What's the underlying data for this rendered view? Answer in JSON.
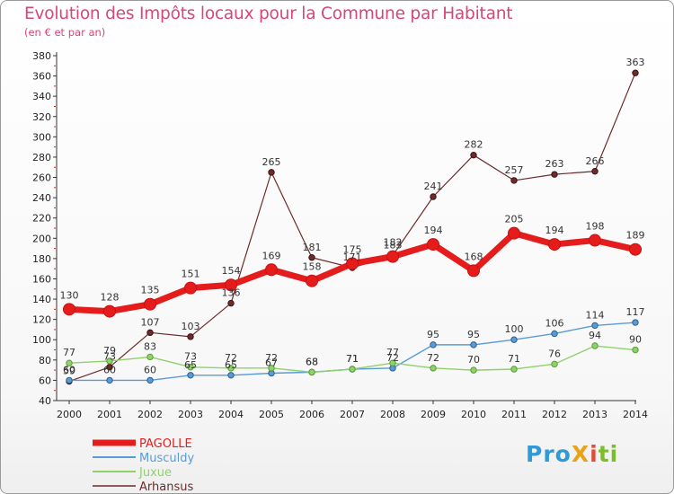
{
  "header": {
    "title": "Evolution des Impôts locaux pour la Commune par Habitant",
    "subtitle": "(en € et par an)"
  },
  "logo": {
    "text": "ProXiti",
    "parts": [
      "Pro",
      "X",
      "i",
      "ti"
    ],
    "colors": [
      "#2e9ad6",
      "#e8a21c",
      "#e24b3b",
      "#7cbd2e"
    ]
  },
  "chart_data": {
    "type": "line",
    "title": "Evolution des Impôts locaux pour la Commune par Habitant",
    "subtitle": "(en € et par an)",
    "x": [
      "2000",
      "2001",
      "2002",
      "2003",
      "2004",
      "2005",
      "2006",
      "2007",
      "2008",
      "2009",
      "2010",
      "2011",
      "2012",
      "2013",
      "2014"
    ],
    "ylim": [
      40,
      380
    ],
    "yticks": [
      40,
      60,
      80,
      100,
      120,
      140,
      160,
      180,
      200,
      220,
      240,
      260,
      280,
      300,
      320,
      340,
      360,
      380
    ],
    "grid": false,
    "legend_position": "bottom-left",
    "series": [
      {
        "name": "PAGOLLE",
        "color": "#e51c1c",
        "values": [
          130,
          128,
          135,
          151,
          154,
          169,
          158,
          175,
          182,
          194,
          168,
          205,
          194,
          198,
          189
        ]
      },
      {
        "name": "Musculdy",
        "color": "#5b9bd5",
        "values": [
          60,
          60,
          60,
          65,
          65,
          67,
          68,
          71,
          72,
          95,
          95,
          100,
          106,
          114,
          117
        ]
      },
      {
        "name": "Juxue",
        "color": "#8fd16a",
        "values": [
          77,
          79,
          83,
          73,
          72,
          72,
          68,
          71,
          77,
          72,
          70,
          71,
          76,
          94,
          90
        ]
      },
      {
        "name": "Arhansus",
        "color": "#6e2b2b",
        "values": [
          59,
          73,
          107,
          103,
          136,
          265,
          181,
          171,
          183,
          241,
          282,
          257,
          263,
          266,
          363
        ]
      }
    ]
  }
}
